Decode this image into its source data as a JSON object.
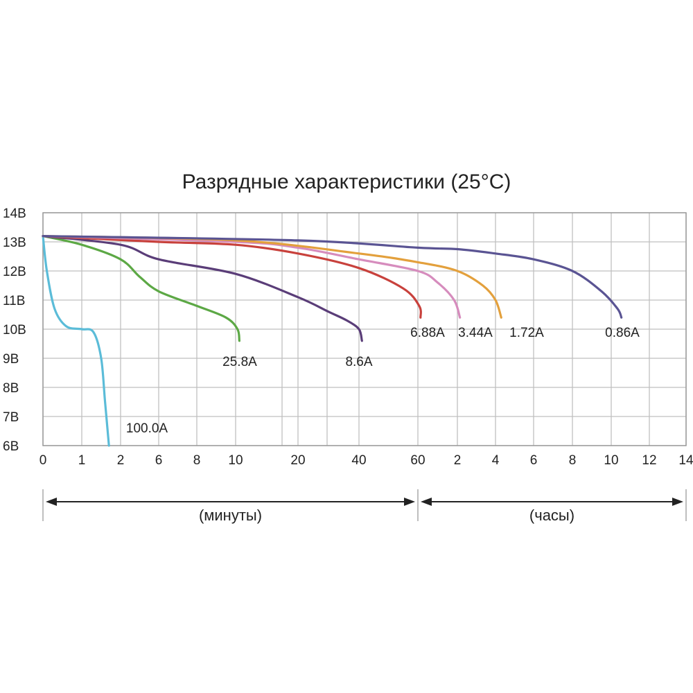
{
  "chart_data": {
    "type": "line",
    "title": "Разрядные характеристики (25°C)",
    "ylabel": "",
    "xlabel": "",
    "ylim": [
      6,
      14
    ],
    "y_ticks": [
      "6В",
      "7В",
      "8В",
      "9В",
      "10В",
      "11В",
      "12В",
      "13В",
      "14В"
    ],
    "x_ticks": [
      "0",
      "1",
      "2",
      "6",
      "8",
      "10",
      "20",
      "40",
      "60",
      "2",
      "4",
      "6",
      "8",
      "10",
      "12",
      "14"
    ],
    "x_ranges": [
      {
        "label": "(минуты)",
        "from_tick": 0,
        "to_tick": 8
      },
      {
        "label": "(часы)",
        "from_tick": 8,
        "to_tick": 15
      }
    ],
    "grid": true,
    "series": [
      {
        "name": "100.0A",
        "color": "#5bbcd8",
        "points": [
          [
            0,
            13.2
          ],
          [
            0.1,
            12.0
          ],
          [
            0.3,
            10.7
          ],
          [
            0.6,
            10.1
          ],
          [
            1.0,
            10.0
          ],
          [
            1.3,
            9.9
          ],
          [
            1.5,
            9.0
          ],
          [
            1.6,
            7.5
          ],
          [
            1.7,
            6.0
          ]
        ]
      },
      {
        "name": "25.8A",
        "color": "#5ca845",
        "points": [
          [
            0,
            13.2
          ],
          [
            1,
            12.9
          ],
          [
            2,
            12.4
          ],
          [
            4,
            11.8
          ],
          [
            6,
            11.3
          ],
          [
            8,
            10.8
          ],
          [
            9.5,
            10.4
          ],
          [
            10.3,
            10.0
          ],
          [
            10.6,
            9.6
          ]
        ]
      },
      {
        "name": "8.6A",
        "color": "#5a3d78",
        "points": [
          [
            0,
            13.2
          ],
          [
            2,
            12.9
          ],
          [
            6,
            12.4
          ],
          [
            10,
            11.9
          ],
          [
            20,
            11.1
          ],
          [
            30,
            10.6
          ],
          [
            36,
            10.3
          ],
          [
            40,
            10.0
          ],
          [
            41,
            9.6
          ]
        ]
      },
      {
        "name": "6.88A",
        "color": "#c8413c",
        "points": [
          [
            0,
            13.2
          ],
          [
            6,
            13.0
          ],
          [
            10,
            12.9
          ],
          [
            20,
            12.6
          ],
          [
            40,
            12.1
          ],
          [
            55,
            11.4
          ],
          [
            62,
            10.8
          ],
          [
            64,
            10.4
          ]
        ]
      },
      {
        "name": "3.44A",
        "color": "#d68cbd",
        "points": [
          [
            0,
            13.2
          ],
          [
            10,
            13.0
          ],
          [
            20,
            12.8
          ],
          [
            40,
            12.4
          ],
          [
            60,
            12.0
          ],
          [
            90,
            11.6
          ],
          [
            115,
            11.0
          ],
          [
            128,
            10.4
          ]
        ]
      },
      {
        "name": "1.72A",
        "color": "#e3a03c",
        "points": [
          [
            0,
            13.2
          ],
          [
            10,
            13.05
          ],
          [
            40,
            12.6
          ],
          [
            60,
            12.3
          ],
          [
            120,
            12.0
          ],
          [
            200,
            11.5
          ],
          [
            240,
            11.0
          ],
          [
            258,
            10.4
          ]
        ]
      },
      {
        "name": "0.86A",
        "color": "#5a5493",
        "points": [
          [
            0,
            13.2
          ],
          [
            20,
            13.05
          ],
          [
            60,
            12.8
          ],
          [
            120,
            12.75
          ],
          [
            240,
            12.6
          ],
          [
            360,
            12.4
          ],
          [
            480,
            12.0
          ],
          [
            570,
            11.3
          ],
          [
            620,
            10.7
          ],
          [
            632,
            10.4
          ]
        ]
      }
    ]
  }
}
